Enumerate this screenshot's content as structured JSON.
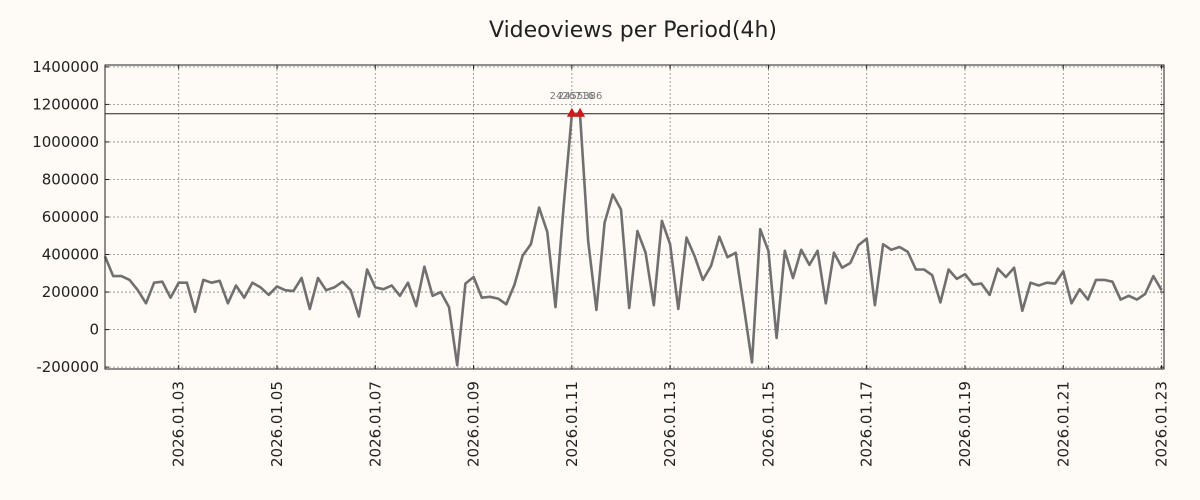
{
  "chart_data": {
    "type": "line",
    "title": "Videoviews per Period(4h)",
    "xlabel": "",
    "ylabel": "",
    "ylim": [
      -210000,
      1410000
    ],
    "x_range_days": [
      0.0,
      21.55
    ],
    "grid": true,
    "y_ticks": [
      -200000,
      0,
      200000,
      400000,
      600000,
      800000,
      1000000,
      1200000,
      1400000
    ],
    "y_tick_labels": [
      "-200000",
      "0",
      "200000",
      "400000",
      "600000",
      "800000",
      "1000000",
      "1200000",
      "1400000"
    ],
    "x_ticks": [
      1.5,
      3.5,
      5.5,
      7.5,
      9.5,
      11.5,
      13.5,
      15.5,
      17.5,
      19.5,
      21.5
    ],
    "x_tick_labels": [
      "2026.01.03",
      "2026.01.05",
      "2026.01.07",
      "2026.01.09",
      "2026.01.11",
      "2026.01.13",
      "2026.01.15",
      "2026.01.17",
      "2026.01.19",
      "2026.01.21",
      "2026.01.23"
    ],
    "clip_line_value": 1150000,
    "series_color": "#707070",
    "marker_color": "#d01818",
    "series": [
      {
        "name": "Videoviews",
        "step_days": 0.16667,
        "values": [
          390000,
          285000,
          285000,
          265000,
          210000,
          140000,
          250000,
          255000,
          170000,
          250000,
          250000,
          95000,
          265000,
          250000,
          260000,
          140000,
          235000,
          170000,
          250000,
          225000,
          185000,
          230000,
          210000,
          205000,
          275000,
          110000,
          275000,
          210000,
          225000,
          255000,
          210000,
          70000,
          320000,
          225000,
          215000,
          235000,
          180000,
          250000,
          125000,
          335000,
          180000,
          200000,
          120000,
          -190000,
          245000,
          280000,
          170000,
          175000,
          165000,
          135000,
          240000,
          395000,
          455000,
          650000,
          520000,
          120000,
          660000,
          1150000,
          1150000,
          470000,
          105000,
          570000,
          720000,
          640000,
          115000,
          525000,
          410000,
          130000,
          580000,
          455000,
          110000,
          490000,
          390000,
          265000,
          340000,
          495000,
          385000,
          410000,
          120000,
          -175000,
          535000,
          420000,
          -45000,
          420000,
          275000,
          425000,
          345000,
          420000,
          140000,
          410000,
          330000,
          355000,
          450000,
          485000,
          130000,
          455000,
          425000,
          440000,
          415000,
          320000,
          320000,
          290000,
          145000,
          320000,
          270000,
          295000,
          240000,
          245000,
          185000,
          325000,
          280000,
          330000,
          100000,
          250000,
          235000,
          250000,
          245000,
          310000,
          140000,
          215000,
          160000,
          265000,
          265000,
          255000,
          160000,
          180000,
          160000,
          190000,
          285000,
          210000
        ]
      }
    ],
    "markers": [
      {
        "x_index": 57,
        "value": 1150000,
        "label": "2426716"
      },
      {
        "x_index": 58,
        "value": 1150000,
        "label": "2455386"
      }
    ]
  }
}
